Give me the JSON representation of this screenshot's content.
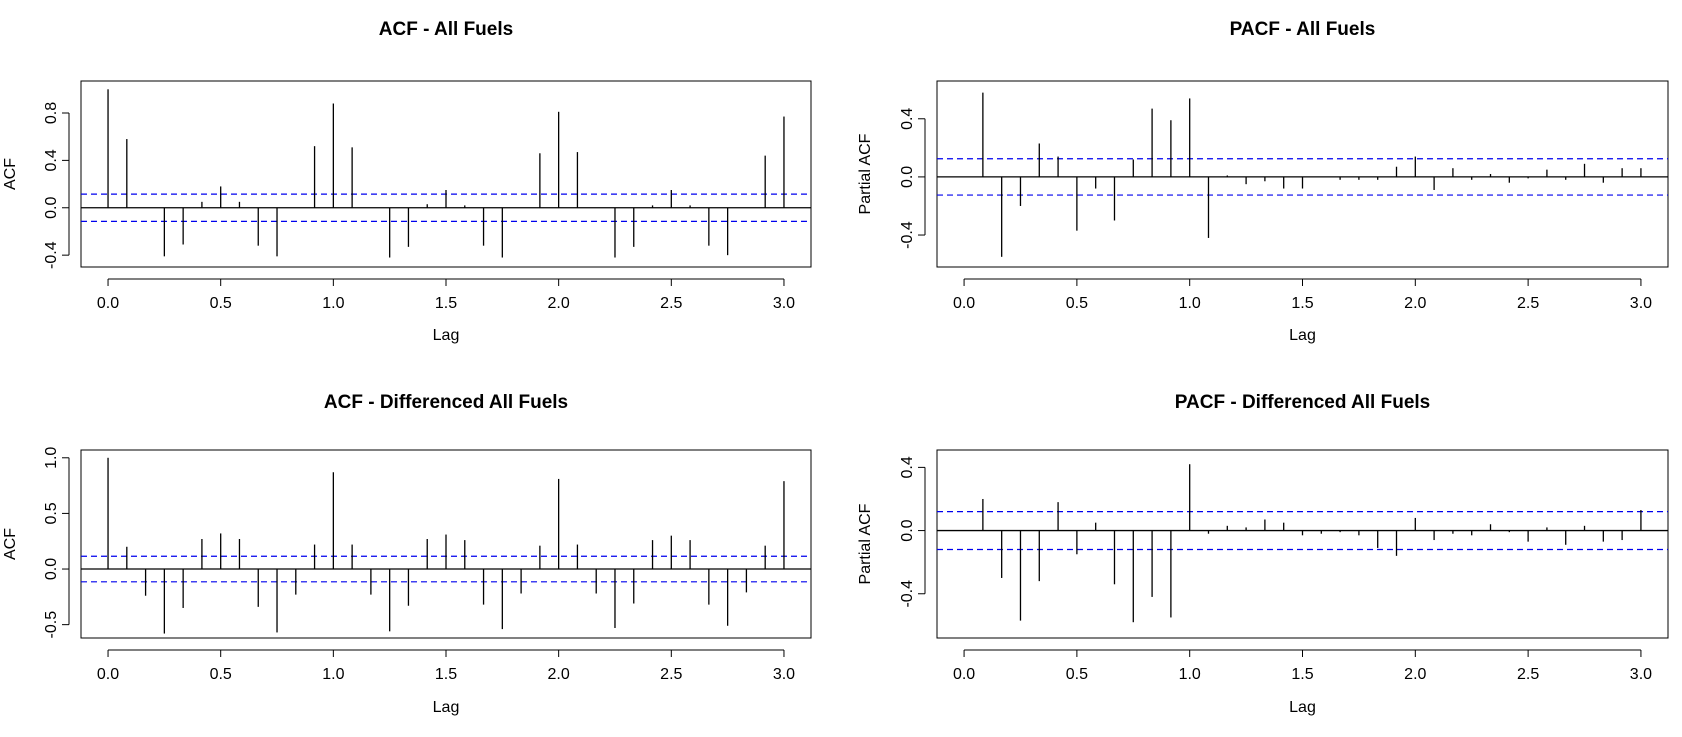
{
  "colors": {
    "bar": "#000000",
    "ci": "#0000ee",
    "frame": "#000000"
  },
  "chart_data": [
    {
      "type": "acf",
      "title": "ACF - All Fuels",
      "xlabel": "Lag",
      "ylabel": "ACF",
      "xlim": [
        -0.12,
        3.12
      ],
      "ylim": [
        -0.5,
        1.07
      ],
      "xticks": [
        "0.0",
        "0.5",
        "1.0",
        "1.5",
        "2.0",
        "2.5",
        "3.0"
      ],
      "xtick_values": [
        0,
        0.5,
        1,
        1.5,
        2,
        2.5,
        3
      ],
      "yticks": [
        "-0.4",
        "0.0",
        "0.4",
        "0.8"
      ],
      "ytick_values": [
        -0.4,
        0,
        0.4,
        0.8
      ],
      "ci": 0.115,
      "lag_step": 0.0833333,
      "start_lag": 0,
      "values": [
        1.0,
        0.58,
        0.0,
        -0.41,
        -0.31,
        0.05,
        0.18,
        0.05,
        -0.32,
        -0.41,
        0.0,
        0.52,
        0.88,
        0.51,
        0.0,
        -0.42,
        -0.33,
        0.03,
        0.15,
        0.02,
        -0.32,
        -0.42,
        0.0,
        0.46,
        0.81,
        0.47,
        0.0,
        -0.42,
        -0.33,
        0.02,
        0.15,
        0.02,
        -0.32,
        -0.4,
        0.0,
        0.44,
        0.77
      ]
    },
    {
      "type": "pacf",
      "title": "PACF - All Fuels",
      "xlabel": "Lag",
      "ylabel": "Partial ACF",
      "xlim": [
        -0.12,
        3.12
      ],
      "ylim": [
        -0.62,
        0.66
      ],
      "xticks": [
        "0.0",
        "0.5",
        "1.0",
        "1.5",
        "2.0",
        "2.5",
        "3.0"
      ],
      "xtick_values": [
        0,
        0.5,
        1,
        1.5,
        2,
        2.5,
        3
      ],
      "yticks": [
        "-0.4",
        "0.0",
        "0.4"
      ],
      "ytick_values": [
        -0.4,
        0,
        0.4
      ],
      "ci": 0.125,
      "lag_step": 0.0833333,
      "start_lag": 0.0833333,
      "values": [
        0.58,
        -0.55,
        -0.2,
        0.23,
        0.14,
        -0.37,
        -0.08,
        -0.3,
        0.12,
        0.47,
        0.39,
        0.54,
        -0.42,
        0.01,
        -0.05,
        -0.03,
        -0.08,
        -0.08,
        0.0,
        -0.02,
        -0.02,
        -0.02,
        0.07,
        0.14,
        -0.09,
        0.06,
        -0.02,
        0.02,
        -0.04,
        -0.01,
        0.05,
        -0.02,
        0.09,
        -0.04,
        0.06,
        0.06
      ]
    },
    {
      "type": "acf",
      "title": "ACF - Differenced All Fuels",
      "xlabel": "Lag",
      "ylabel": "ACF",
      "xlim": [
        -0.12,
        3.12
      ],
      "ylim": [
        -0.62,
        1.07
      ],
      "xticks": [
        "0.0",
        "0.5",
        "1.0",
        "1.5",
        "2.0",
        "2.5",
        "3.0"
      ],
      "xtick_values": [
        0,
        0.5,
        1,
        1.5,
        2,
        2.5,
        3
      ],
      "yticks": [
        "-0.5",
        "0.0",
        "0.5",
        "1.0"
      ],
      "ytick_values": [
        -0.5,
        0,
        0.5,
        1.0
      ],
      "ci": 0.115,
      "lag_step": 0.0833333,
      "start_lag": 0,
      "values": [
        1.0,
        0.2,
        -0.24,
        -0.58,
        -0.35,
        0.27,
        0.32,
        0.27,
        -0.34,
        -0.57,
        -0.23,
        0.22,
        0.87,
        0.22,
        -0.23,
        -0.56,
        -0.33,
        0.27,
        0.31,
        0.26,
        -0.32,
        -0.54,
        -0.22,
        0.21,
        0.81,
        0.22,
        -0.22,
        -0.53,
        -0.31,
        0.26,
        0.3,
        0.26,
        -0.32,
        -0.51,
        -0.21,
        0.21,
        0.79
      ]
    },
    {
      "type": "pacf",
      "title": "PACF - Differenced All Fuels",
      "xlabel": "Lag",
      "ylabel": "Partial ACF",
      "xlim": [
        -0.12,
        3.12
      ],
      "ylim": [
        -0.68,
        0.51
      ],
      "xticks": [
        "0.0",
        "0.5",
        "1.0",
        "1.5",
        "2.0",
        "2.5",
        "3.0"
      ],
      "xtick_values": [
        0,
        0.5,
        1,
        1.5,
        2,
        2.5,
        3
      ],
      "yticks": [
        "-0.4",
        "0.0",
        "0.4"
      ],
      "ytick_values": [
        -0.4,
        0,
        0.4
      ],
      "ci": 0.12,
      "lag_step": 0.0833333,
      "start_lag": 0.0833333,
      "values": [
        0.2,
        -0.3,
        -0.57,
        -0.32,
        0.18,
        -0.15,
        0.05,
        -0.34,
        -0.58,
        -0.42,
        -0.55,
        0.42,
        -0.02,
        0.03,
        0.02,
        0.07,
        0.05,
        -0.03,
        -0.02,
        -0.01,
        -0.03,
        -0.11,
        -0.16,
        0.08,
        -0.06,
        -0.02,
        -0.03,
        0.04,
        -0.01,
        -0.07,
        0.02,
        -0.09,
        0.03,
        -0.07,
        -0.06,
        0.13
      ]
    }
  ]
}
